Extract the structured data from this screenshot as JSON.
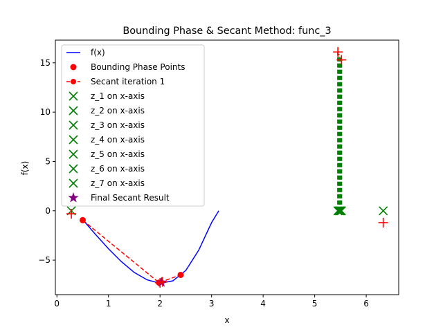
{
  "chart_data": {
    "type": "line",
    "title": "Bounding Phase & Secant Method: func_3",
    "xlabel": "x",
    "ylabel": "f(x)",
    "xlim": [
      -0.03,
      6.63
    ],
    "ylim": [
      -8.5,
      17.3
    ],
    "xticks": [
      0,
      1,
      2,
      3,
      4,
      5,
      6
    ],
    "yticks": [
      -5,
      0,
      5,
      10,
      15
    ],
    "legend_position": "upper-left",
    "grid": false,
    "series": [
      {
        "name": "f(x)",
        "kind": "line",
        "color": "#0000ff",
        "x": [
          0.5,
          0.75,
          1.0,
          1.25,
          1.5,
          1.75,
          2.0,
          2.25,
          2.5,
          2.75,
          3.0,
          3.14
        ],
        "y": [
          -0.9,
          -2.4,
          -3.85,
          -5.15,
          -6.25,
          -7.0,
          -7.35,
          -7.1,
          -6.05,
          -4.0,
          -1.2,
          0.0
        ]
      },
      {
        "name": "Bounding Phase Points",
        "kind": "scatter",
        "color": "#ff0000",
        "x": [
          0.5,
          1.98,
          2.4
        ],
        "y": [
          -0.95,
          -7.28,
          -6.5
        ]
      },
      {
        "name": "Secant iteration 1",
        "kind": "line-marker",
        "color": "#ff0000",
        "x": [
          0.5,
          1.98,
          2.4
        ],
        "y": [
          -0.95,
          -7.28,
          -6.5
        ]
      },
      {
        "name": "z_1 on x-axis",
        "kind": "x-marker",
        "color": "#008000",
        "x": [
          0.28
        ],
        "y": [
          0.0
        ]
      },
      {
        "name": "z_2 on x-axis",
        "kind": "x-marker",
        "color": "#008000",
        "x": [
          5.45
        ],
        "y": [
          0.0
        ]
      },
      {
        "name": "z_3 on x-axis",
        "kind": "x-marker",
        "color": "#008000",
        "x": [
          5.5
        ],
        "y": [
          0.0
        ]
      },
      {
        "name": "z_4 on x-axis",
        "kind": "x-marker",
        "color": "#008000",
        "x": [
          5.47
        ],
        "y": [
          0.0
        ]
      },
      {
        "name": "z_5 on x-axis",
        "kind": "x-marker",
        "color": "#008000",
        "x": [
          5.52
        ],
        "y": [
          0.0
        ]
      },
      {
        "name": "z_6 on x-axis",
        "kind": "x-marker",
        "color": "#008000",
        "x": [
          5.49
        ],
        "y": [
          0.0
        ]
      },
      {
        "name": "z_7 on x-axis",
        "kind": "x-marker",
        "color": "#008000",
        "x": [
          6.33
        ],
        "y": [
          0.0
        ]
      },
      {
        "name": "Final Secant Result",
        "kind": "star",
        "color": "#800080",
        "x": [
          2.03
        ],
        "y": [
          -7.25
        ]
      }
    ],
    "extra_marks": {
      "plus_points": {
        "color": "#ff0000",
        "x": [
          0.28,
          5.45,
          5.52,
          6.33,
          2.0,
          2.05
        ],
        "y": [
          -0.3,
          16.1,
          15.3,
          -1.2,
          -7.3,
          -7.2
        ]
      },
      "green_dashed_lines": {
        "color": "#008000",
        "segments": [
          {
            "x": 5.45,
            "y0": 0.0,
            "y1": 16.1
          },
          {
            "x": 5.47,
            "y0": 0.0,
            "y1": 15.9
          },
          {
            "x": 5.49,
            "y0": 0.0,
            "y1": 15.7
          },
          {
            "x": 5.5,
            "y0": 0.0,
            "y1": 15.5
          },
          {
            "x": 5.52,
            "y0": 0.0,
            "y1": 15.3
          }
        ]
      },
      "red_dashed_lines": {
        "color": "#ff0000",
        "segments": [
          {
            "x0": 0.28,
            "y0": -0.3,
            "x1": 0.28,
            "y1": 0.0
          }
        ]
      }
    }
  }
}
